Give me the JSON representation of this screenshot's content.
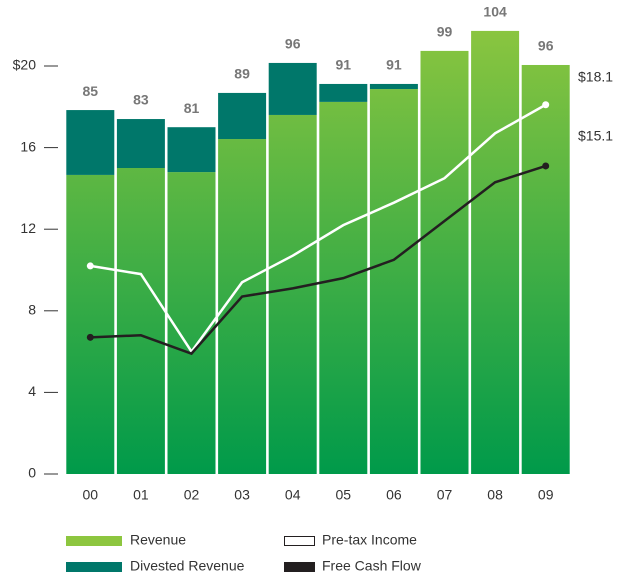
{
  "chart_data": {
    "type": "bar-line",
    "categories": [
      "00",
      "01",
      "02",
      "03",
      "04",
      "05",
      "06",
      "07",
      "08",
      "09"
    ],
    "series": [
      {
        "name": "Revenue",
        "kind": "bar",
        "color": "#8dc63f",
        "color2": "#009a4a",
        "values": [
          14.66,
          15.0,
          14.8,
          16.42,
          17.6,
          18.24,
          18.87,
          20.74,
          21.72,
          20.05
        ]
      },
      {
        "name": "Divested Revenue",
        "kind": "bar",
        "color": "#00776a",
        "values": [
          3.18,
          2.4,
          2.2,
          2.26,
          2.55,
          0.88,
          0.25,
          0,
          0,
          0
        ]
      },
      {
        "name": "Pre-tax Income",
        "kind": "line",
        "color": "#ffffff",
        "values": [
          10.2,
          9.8,
          6.0,
          9.4,
          10.7,
          12.2,
          13.3,
          14.5,
          16.7,
          18.1
        ],
        "value_labels": [
          null,
          null,
          null,
          null,
          null,
          null,
          null,
          null,
          null,
          "$18.1"
        ]
      },
      {
        "name": "Free Cash Flow",
        "kind": "line",
        "color": "#231f20",
        "values": [
          6.7,
          6.8,
          5.9,
          8.7,
          9.1,
          9.6,
          10.5,
          12.4,
          14.3,
          15.1
        ],
        "value_labels": [
          null,
          null,
          null,
          null,
          null,
          null,
          null,
          null,
          null,
          "$15.1"
        ]
      }
    ],
    "total_labels": [
      85,
      83,
      81,
      89,
      96,
      91,
      91,
      99,
      104,
      96
    ],
    "ylim": [
      0,
      22.5
    ],
    "yticks": [
      0,
      4,
      8,
      12,
      16,
      {
        "value": 20,
        "label": "$20"
      }
    ]
  }
}
